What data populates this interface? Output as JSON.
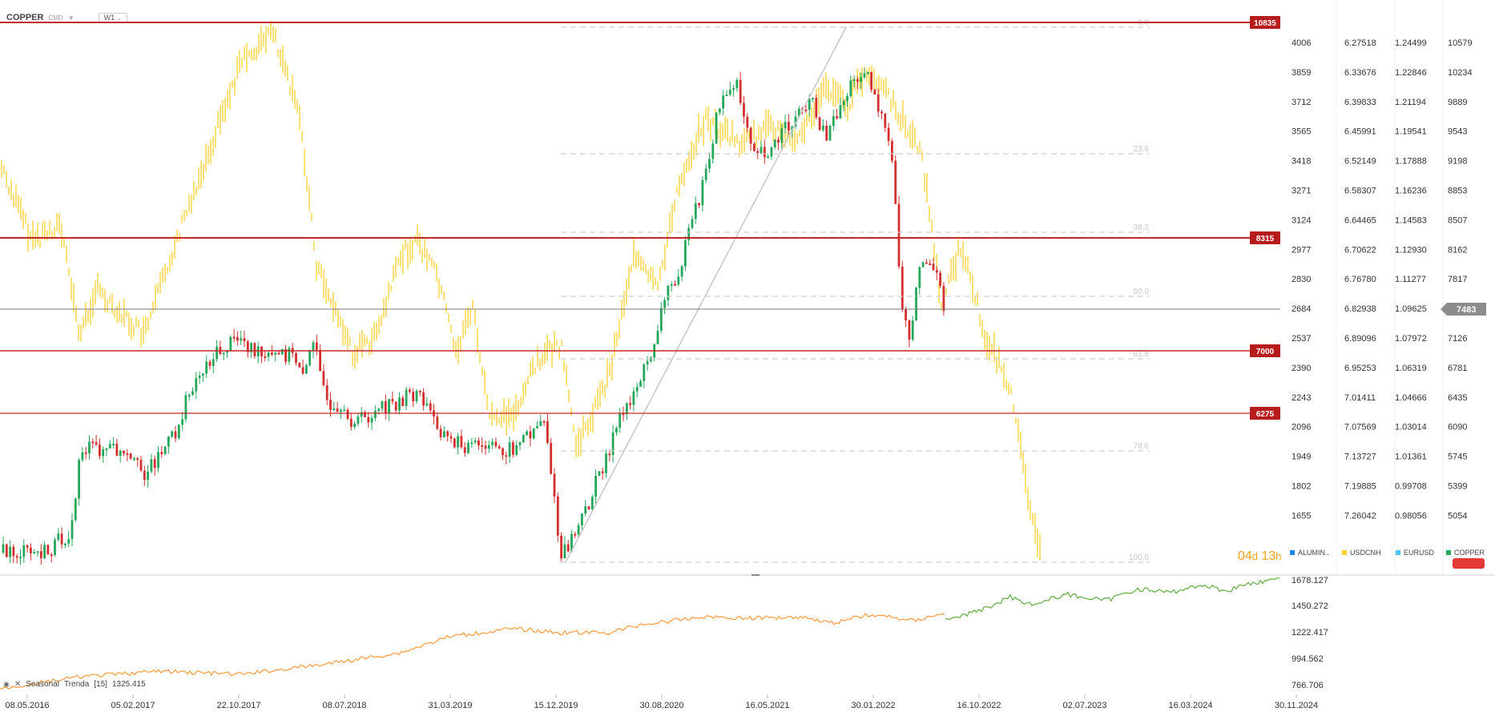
{
  "header": {
    "symbol": "COPPER",
    "type": "CMD",
    "timeframe": "W1"
  },
  "price_axes": {
    "col1": [
      "4006",
      "3859",
      "3712",
      "3565",
      "3418",
      "3271",
      "3124",
      "2977",
      "2830",
      "2684",
      "2537",
      "2390",
      "2243",
      "2096",
      "1949",
      "1802",
      "1655"
    ],
    "col2": [
      "6.27518",
      "6.33676",
      "6.39833",
      "6.45991",
      "6.52149",
      "6.58307",
      "6.64465",
      "6.70622",
      "6.76780",
      "6.82938",
      "6.89096",
      "6.95253",
      "7.01411",
      "7.07569",
      "7.13727",
      "7.19885",
      "7.26042"
    ],
    "col3": [
      "1.24499",
      "1.22846",
      "1.21194",
      "1.19541",
      "1.17888",
      "1.16236",
      "1.14583",
      "1.12930",
      "1.11277",
      "1.09625",
      "1.07972",
      "1.06319",
      "1.04666",
      "1.03014",
      "1.01361",
      "0.99708",
      "0.98056"
    ],
    "col4": [
      "10579",
      "10234",
      "9889",
      "9543",
      "9198",
      "8853",
      "8507",
      "8162",
      "7817",
      "7483",
      "7126",
      "6781",
      "6435",
      "6090",
      "5745",
      "5399",
      "5054"
    ]
  },
  "current_price": "7483",
  "levels": [
    {
      "label": "10835",
      "color": "#c62828"
    },
    {
      "label": "8315",
      "color": "#c62828"
    },
    {
      "label": "7000",
      "color": "#c62828"
    },
    {
      "label": "6275",
      "color": "#c62828"
    }
  ],
  "fib_labels": [
    "0.0",
    "23.6",
    "38.2",
    "50.0",
    "61.8",
    "78.6",
    "100.0"
  ],
  "legend": [
    {
      "name": "ALUMIN..",
      "color": "#1e88e5"
    },
    {
      "name": "USDCNH",
      "color": "#f9d030"
    },
    {
      "name": "EURUSD",
      "color": "#4fc3f7"
    },
    {
      "name": "COPPER",
      "color": "#26a65b"
    }
  ],
  "countdown": {
    "days": "04",
    "d": "d",
    "hours": "13",
    "h": "h"
  },
  "sub_indicator": {
    "name": "Seasonal",
    "param_name": "Trenda",
    "param": "[15]",
    "value": "1325.415"
  },
  "sub_axis": [
    "1678.127",
    "1450.272",
    "1222.417",
    "994.562",
    "766.706"
  ],
  "date_axis": [
    "08.05.2016",
    "05.02.2017",
    "22.10.2017",
    "08.07.2018",
    "31.03.2019",
    "15.12.2019",
    "30.08.2020",
    "16.05.2021",
    "30.01.2022",
    "16.10.2022",
    "02.07.2023",
    "16.03.2024",
    "30.11.2024"
  ],
  "colors": {
    "bull": "#26a65b",
    "bear": "#d32f2f",
    "usdcnh": "#f9d030",
    "sub_orange": "#f7a04a",
    "sub_green": "#6ab04c"
  }
}
